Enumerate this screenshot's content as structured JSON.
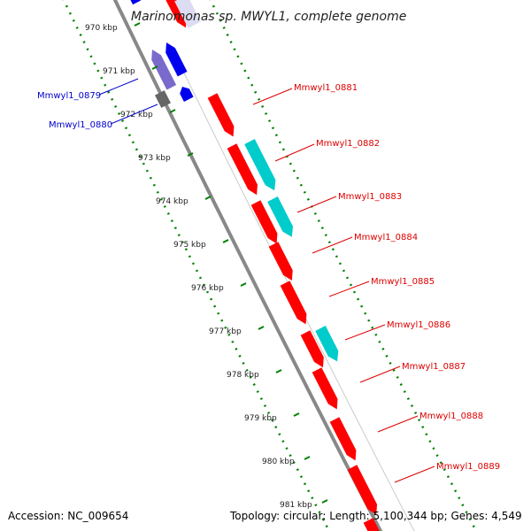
{
  "title": "Marinomonas sp. MWYL1, complete genome",
  "footer": {
    "accession": "Accession: NC_009654",
    "info": "Topology: circular; Length: 5,100,344 bp; Genes: 4,549"
  },
  "colors": {
    "forward_gene": "#ff0000",
    "reverse_gene": "#0000ee",
    "cds_feature": "#00cccc",
    "ruler_dots": "#008000",
    "backbone": "#888888",
    "label_forward": "#dd0000",
    "label_reverse": "#0000cc"
  },
  "kbp_ticks": [
    "970 kbp",
    "971 kbp",
    "972 kbp",
    "973 kbp",
    "974 kbp",
    "975 kbp",
    "976 kbp",
    "977 kbp",
    "978 kbp",
    "979 kbp",
    "980 kbp",
    "981 kbp"
  ],
  "gene_labels": [
    {
      "name": "Mmwyl1_0879",
      "strand": "reverse"
    },
    {
      "name": "Mmwyl1_0880",
      "strand": "reverse"
    },
    {
      "name": "Mmwyl1_0881",
      "strand": "forward"
    },
    {
      "name": "Mmwyl1_0882",
      "strand": "forward"
    },
    {
      "name": "Mmwyl1_0883",
      "strand": "forward"
    },
    {
      "name": "Mmwyl1_0884",
      "strand": "forward"
    },
    {
      "name": "Mmwyl1_0885",
      "strand": "forward"
    },
    {
      "name": "Mmwyl1_0886",
      "strand": "forward"
    },
    {
      "name": "Mmwyl1_0887",
      "strand": "forward"
    },
    {
      "name": "Mmwyl1_0888",
      "strand": "forward"
    },
    {
      "name": "Mmwyl1_0889",
      "strand": "forward"
    }
  ]
}
